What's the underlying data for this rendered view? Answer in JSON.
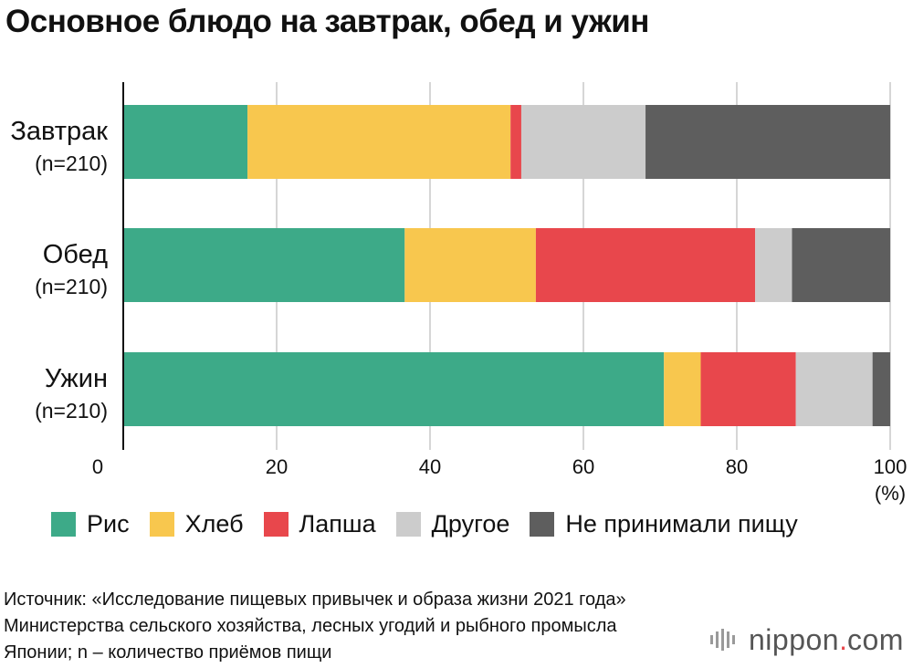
{
  "title": "Основное блюдо на завтрак, обед и ужин",
  "chart_data": {
    "type": "bar",
    "orientation": "horizontal",
    "stacked": true,
    "categories": [
      {
        "label": "Завтрак",
        "sub": "(n=210)"
      },
      {
        "label": "Обед",
        "sub": "(n=210)"
      },
      {
        "label": "Ужин",
        "sub": "(n=210)"
      }
    ],
    "series": [
      {
        "name": "Рис",
        "color": "#3daa88",
        "values": [
          16.2,
          36.7,
          70.5
        ]
      },
      {
        "name": "Хлеб",
        "color": "#f8c74e",
        "values": [
          34.3,
          17.1,
          4.8
        ]
      },
      {
        "name": "Лапша",
        "color": "#e8474c",
        "values": [
          1.4,
          28.6,
          12.4
        ]
      },
      {
        "name": "Другое",
        "color": "#cccccc",
        "values": [
          16.2,
          4.8,
          10.0
        ]
      },
      {
        "name": "Не принимали пищу",
        "color": "#5e5e5e",
        "values": [
          31.9,
          12.8,
          2.3
        ]
      }
    ],
    "xlim": [
      0,
      100
    ],
    "xticks": [
      "0",
      "20",
      "40",
      "60",
      "80",
      "100"
    ],
    "xunit": "(%)",
    "grid": true,
    "legend": "bottom"
  },
  "source": "Источник: «Исследование пищевых привычек и образа жизни 2021 года» Министерства сельского хозяйства, лесных угодий и рыбного промысла Японии; n – количество приёмов пищи",
  "logo": {
    "text": "nippon",
    "dot": ".",
    "suffix": "com"
  }
}
